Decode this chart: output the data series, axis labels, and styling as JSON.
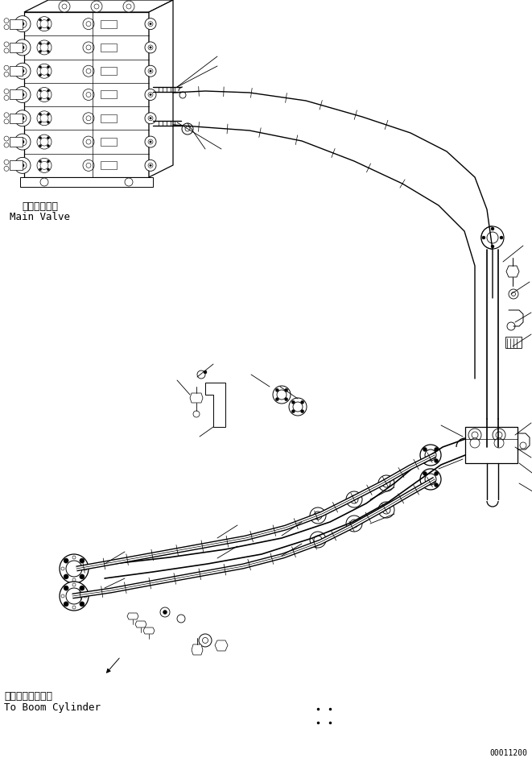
{
  "background_color": "#ffffff",
  "line_color": "#000000",
  "text_color": "#000000",
  "title_jp": "メインバルブ",
  "title_en": "Main Valve",
  "bottom_label_jp": "ブームシリンダへ",
  "bottom_label_en": "To Boom Cylinder",
  "watermark": "00011200",
  "fig_width": 6.61,
  "fig_height": 9.46,
  "dpi": 100
}
